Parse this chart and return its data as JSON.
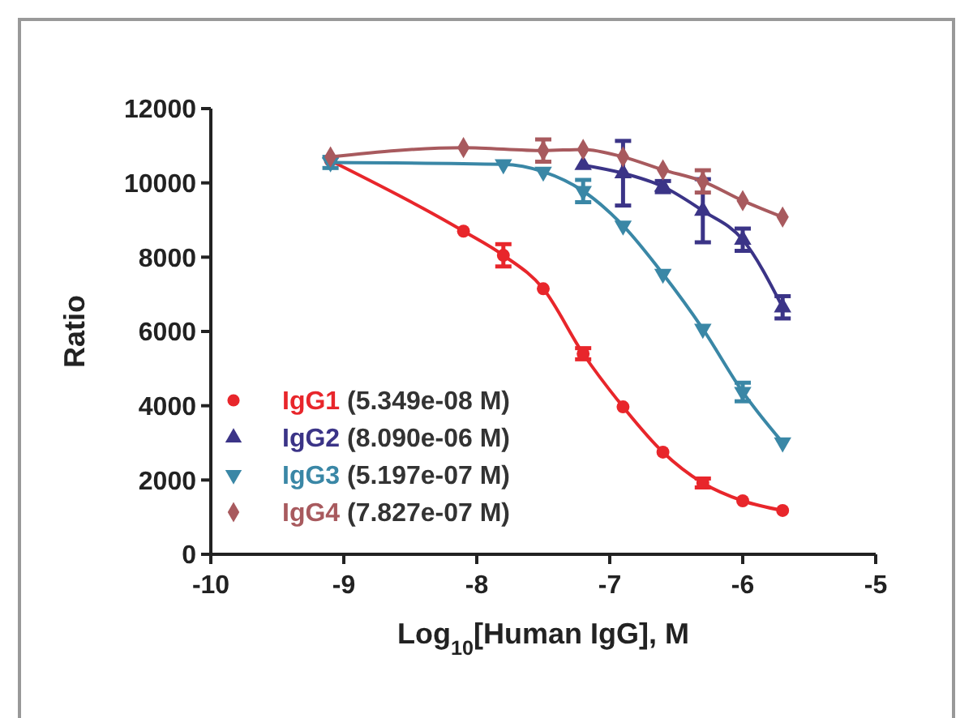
{
  "chart_data": {
    "type": "line",
    "xlabel": "Log$_{10}$[Human IgG], M",
    "ylabel": "Ratio",
    "x": [
      -9.1,
      -8.1,
      -7.8,
      -7.5,
      -7.2,
      -6.9,
      -6.6,
      -6.3,
      -6.0,
      -5.7
    ],
    "xlim": [
      -10,
      -5
    ],
    "xticks": [
      -10,
      -9,
      -8,
      -7,
      -6,
      -5
    ],
    "ylim": [
      0,
      12000
    ],
    "yticks": [
      0,
      2000,
      4000,
      6000,
      8000,
      10000,
      12000
    ],
    "grid": false,
    "legend": "bottom left",
    "line_style": "solid",
    "series": [
      {
        "name": "IgG1 (5.349e-08 M)",
        "color": "#e8262b",
        "marker": "circle",
        "values": [
          10600,
          8700,
          8050,
          7150,
          5400,
          3970,
          2750,
          1920,
          1440,
          1180
        ],
        "errors": [
          null,
          null,
          300,
          null,
          150,
          null,
          null,
          120,
          null,
          null
        ]
      },
      {
        "name": "IgG2 (8.090e-06 M)",
        "color": "#3b3487",
        "marker": "triangle",
        "values": [
          null,
          null,
          null,
          null,
          10480,
          10260,
          9900,
          9250,
          8470,
          6650
        ],
        "errors": [
          null,
          null,
          null,
          null,
          null,
          870,
          150,
          850,
          300,
          300
        ]
      },
      {
        "name": "IgG3 (5.197e-07 M)",
        "color": "#3a87a6",
        "marker": "triangle-down",
        "values": [
          10550,
          null,
          10500,
          10300,
          9780,
          8850,
          7550,
          6070,
          4370,
          3010
        ],
        "errors": [
          150,
          null,
          null,
          null,
          300,
          null,
          null,
          null,
          250,
          null
        ]
      },
      {
        "name": "IgG4 (7.827e-07 M)",
        "color": "#a85a5e",
        "marker": "diamond",
        "values": [
          10700,
          10950,
          null,
          10870,
          10900,
          10700,
          10350,
          10040,
          9520,
          9080
        ],
        "errors": [
          null,
          null,
          null,
          300,
          null,
          null,
          null,
          300,
          null,
          null
        ]
      }
    ]
  }
}
